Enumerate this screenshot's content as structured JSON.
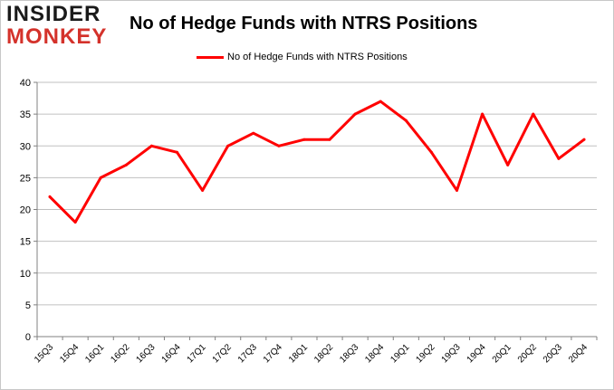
{
  "logo": {
    "line1": "INSIDER",
    "line2": "MONKEY"
  },
  "colors": {
    "series": "#ff0000",
    "grid": "#c0c0c0",
    "axis": "#808080",
    "logo_red": "#d4322b",
    "logo_dark": "#1a1a1a"
  },
  "chart_data": {
    "type": "line",
    "title": "No of Hedge Funds with NTRS Positions",
    "xlabel": "",
    "ylabel": "",
    "ylim": [
      0,
      40
    ],
    "yticks": [
      0,
      5,
      10,
      15,
      20,
      25,
      30,
      35,
      40
    ],
    "grid": true,
    "legend_position": "top-center",
    "categories": [
      "15Q3",
      "15Q4",
      "16Q1",
      "16Q2",
      "16Q3",
      "16Q4",
      "17Q1",
      "17Q2",
      "17Q3",
      "17Q4",
      "18Q1",
      "18Q2",
      "18Q3",
      "18Q4",
      "19Q1",
      "19Q2",
      "19Q3",
      "19Q4",
      "20Q1",
      "20Q2",
      "20Q3",
      "20Q4"
    ],
    "series": [
      {
        "name": "No of Hedge Funds with NTRS Positions",
        "values": [
          22,
          18,
          25,
          27,
          30,
          29,
          23,
          30,
          32,
          30,
          31,
          31,
          35,
          37,
          34,
          29,
          23,
          35,
          27,
          35,
          28,
          31
        ]
      }
    ]
  }
}
